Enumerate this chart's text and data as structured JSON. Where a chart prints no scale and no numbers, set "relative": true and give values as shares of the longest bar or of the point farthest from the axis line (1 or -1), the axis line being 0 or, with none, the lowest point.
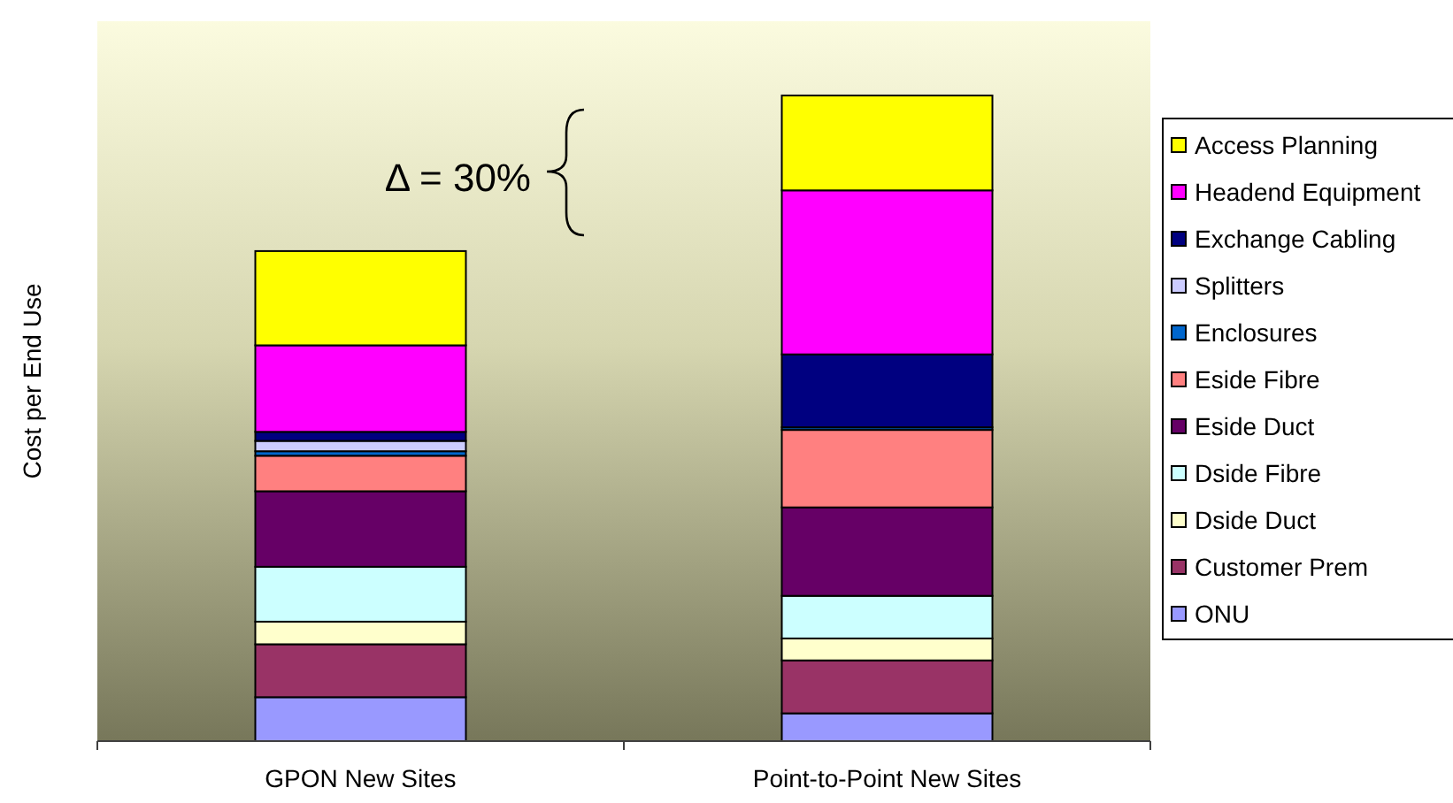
{
  "chart_data": {
    "type": "bar",
    "stacked": true,
    "relative": true,
    "ylabel": "Cost per End Use",
    "categories": [
      "GPON New Sites",
      "Point-to-Point New Sites"
    ],
    "legend": "right",
    "annotations": [
      "Δ = 30%"
    ],
    "series": [
      {
        "name": "ONU",
        "color": "#9999ff",
        "values": [
          0.068,
          0.043
        ]
      },
      {
        "name": "Customer Prem",
        "color": "#993366",
        "values": [
          0.082,
          0.082
        ]
      },
      {
        "name": "Dside Duct",
        "color": "#ffffcc",
        "values": [
          0.035,
          0.034
        ]
      },
      {
        "name": "Dside Fibre",
        "color": "#ccffff",
        "values": [
          0.085,
          0.066
        ]
      },
      {
        "name": "Eside Duct",
        "color": "#660066",
        "values": [
          0.117,
          0.137
        ]
      },
      {
        "name": "Eside Fibre",
        "color": "#ff8080",
        "values": [
          0.055,
          0.12
        ]
      },
      {
        "name": "Enclosures",
        "color": "#0066cc",
        "values": [
          0.007,
          0.004
        ]
      },
      {
        "name": "Splitters",
        "color": "#ccccff",
        "values": [
          0.016,
          0
        ]
      },
      {
        "name": "Exchange Cabling",
        "color": "#000080",
        "values": [
          0.014,
          0.113
        ]
      },
      {
        "name": "Headend Equipment",
        "color": "#ff00ff",
        "values": [
          0.134,
          0.254
        ]
      },
      {
        "name": "Access Planning",
        "color": "#ffff00",
        "values": [
          0.146,
          0.147
        ]
      }
    ]
  }
}
